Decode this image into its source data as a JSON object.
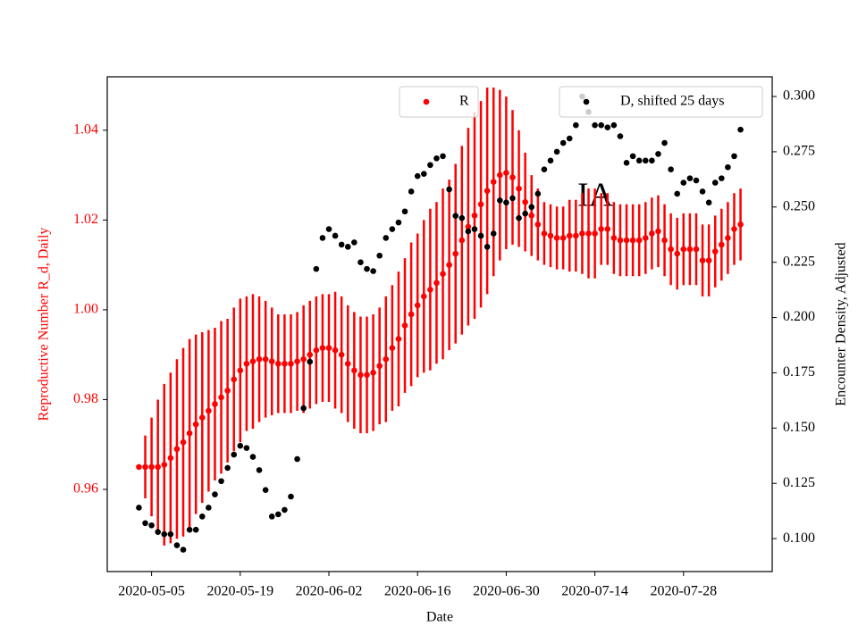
{
  "chart_data": {
    "type": "scatter",
    "xlabel": "Date",
    "ylabel": "Reproductive Number R_d, Daily",
    "y2label": "Encounter Density, Adjusted",
    "annotation": "IA",
    "x": [
      "2020-05-03",
      "2020-05-04",
      "2020-05-05",
      "2020-05-06",
      "2020-05-07",
      "2020-05-08",
      "2020-05-09",
      "2020-05-10",
      "2020-05-11",
      "2020-05-12",
      "2020-05-13",
      "2020-05-14",
      "2020-05-15",
      "2020-05-16",
      "2020-05-17",
      "2020-05-18",
      "2020-05-19",
      "2020-05-20",
      "2020-05-21",
      "2020-05-22",
      "2020-05-23",
      "2020-05-24",
      "2020-05-25",
      "2020-05-26",
      "2020-05-27",
      "2020-05-28",
      "2020-05-29",
      "2020-05-30",
      "2020-05-31",
      "2020-06-01",
      "2020-06-02",
      "2020-06-03",
      "2020-06-04",
      "2020-06-05",
      "2020-06-06",
      "2020-06-07",
      "2020-06-08",
      "2020-06-09",
      "2020-06-10",
      "2020-06-11",
      "2020-06-12",
      "2020-06-13",
      "2020-06-14",
      "2020-06-15",
      "2020-06-16",
      "2020-06-17",
      "2020-06-18",
      "2020-06-19",
      "2020-06-20",
      "2020-06-21",
      "2020-06-22",
      "2020-06-23",
      "2020-06-24",
      "2020-06-25",
      "2020-06-26",
      "2020-06-27",
      "2020-06-28",
      "2020-06-29",
      "2020-06-30",
      "2020-07-01",
      "2020-07-02",
      "2020-07-03",
      "2020-07-04",
      "2020-07-05",
      "2020-07-06",
      "2020-07-07",
      "2020-07-08",
      "2020-07-09",
      "2020-07-10",
      "2020-07-11",
      "2020-07-12",
      "2020-07-13",
      "2020-07-14",
      "2020-07-15",
      "2020-07-16",
      "2020-07-17",
      "2020-07-18",
      "2020-07-19",
      "2020-07-20",
      "2020-07-21",
      "2020-07-22",
      "2020-07-23",
      "2020-07-24",
      "2020-07-25",
      "2020-07-26",
      "2020-07-27",
      "2020-07-28",
      "2020-07-29",
      "2020-07-30",
      "2020-07-31",
      "2020-08-01",
      "2020-08-02",
      "2020-08-03",
      "2020-08-04",
      "2020-08-05",
      "2020-08-06"
    ],
    "xlim": [
      "2020-04-28",
      "2020-08-11"
    ],
    "xticks": [
      "2020-05-05",
      "2020-05-19",
      "2020-06-02",
      "2020-06-16",
      "2020-06-30",
      "2020-07-14",
      "2020-07-28"
    ],
    "ylim": [
      0.9417,
      1.0519
    ],
    "yticks": [
      0.96,
      0.98,
      {
        "value": 1,
        "label": "1.00"
      },
      1.02,
      1.04
    ],
    "y2lim": [
      0.0851,
      0.3089
    ],
    "y2ticks": [
      {
        "value": 0.1,
        "label": "0.100"
      },
      0.125,
      {
        "value": 0.15,
        "label": "0.150"
      },
      0.175,
      {
        "value": 0.2,
        "label": "0.200"
      },
      0.225,
      {
        "value": 0.25,
        "label": "0.250"
      },
      0.275,
      {
        "value": 0.3,
        "label": "0.300"
      }
    ],
    "series": [
      {
        "name": "R",
        "color": "#ff0000",
        "legend_loc": "upper center",
        "values": [
          0.965,
          0.965,
          0.965,
          0.965,
          0.9655,
          0.967,
          0.969,
          0.9705,
          0.9725,
          0.9745,
          0.976,
          0.9775,
          0.979,
          0.9805,
          0.982,
          0.9845,
          0.9865,
          0.988,
          0.9885,
          0.989,
          0.989,
          0.9885,
          0.988,
          0.988,
          0.988,
          0.9885,
          0.989,
          0.99,
          0.991,
          0.9915,
          0.9915,
          0.991,
          0.99,
          0.988,
          0.9865,
          0.9855,
          0.9855,
          0.986,
          0.9875,
          0.989,
          0.9915,
          0.9935,
          0.9965,
          0.999,
          1.001,
          1.003,
          1.0045,
          1.006,
          1.008,
          1.01,
          1.0125,
          1.0155,
          1.0185,
          1.021,
          1.0235,
          1.0265,
          1.0285,
          1.03,
          1.0305,
          1.0295,
          1.027,
          1.024,
          1.021,
          1.019,
          1.017,
          1.0165,
          1.016,
          1.016,
          1.0165,
          1.0165,
          1.017,
          1.017,
          1.017,
          1.018,
          1.018,
          1.016,
          1.0155,
          1.0155,
          1.0155,
          1.0155,
          1.016,
          1.017,
          1.0175,
          1.0155,
          1.0135,
          1.0125,
          1.0135,
          1.0135,
          1.0135,
          1.011,
          1.011,
          1.013,
          1.0145,
          1.016,
          1.018,
          1.019
        ],
        "errors": [
          0,
          0.007,
          0.011,
          0.015,
          0.018,
          0.019,
          0.02,
          0.021,
          0.021,
          0.02,
          0.019,
          0.018,
          0.017,
          0.017,
          0.016,
          0.016,
          0.016,
          0.015,
          0.015,
          0.014,
          0.013,
          0.012,
          0.011,
          0.011,
          0.011,
          0.011,
          0.012,
          0.012,
          0.012,
          0.012,
          0.012,
          0.013,
          0.013,
          0.013,
          0.013,
          0.013,
          0.013,
          0.013,
          0.013,
          0.014,
          0.014,
          0.015,
          0.015,
          0.016,
          0.016,
          0.017,
          0.018,
          0.018,
          0.019,
          0.019,
          0.02,
          0.021,
          0.022,
          0.023,
          0.023,
          0.023,
          0.021,
          0.019,
          0.017,
          0.015,
          0.013,
          0.011,
          0.009,
          0.008,
          0.007,
          0.007,
          0.007,
          0.007,
          0.008,
          0.008,
          0.009,
          0.01,
          0.01,
          0.008,
          0.008,
          0.008,
          0.008,
          0.008,
          0.008,
          0.008,
          0.008,
          0.008,
          0.008,
          0.008,
          0.008,
          0.008,
          0.008,
          0.008,
          0.008,
          0.008,
          0.008,
          0.008,
          0.008,
          0.008,
          0.008,
          0.008
        ]
      },
      {
        "name": "D, shifted 25 days",
        "color": "#000000",
        "axis": "y2",
        "legend_loc": "upper right",
        "values": [
          0.114,
          0.107,
          0.106,
          0.103,
          0.102,
          0.102,
          0.097,
          0.095,
          0.104,
          0.104,
          0.11,
          0.114,
          0.12,
          0.126,
          0.132,
          0.138,
          0.142,
          0.141,
          0.137,
          0.131,
          0.122,
          0.11,
          0.111,
          0.113,
          0.119,
          0.136,
          0.159,
          0.18,
          0.222,
          0.236,
          0.24,
          0.237,
          0.233,
          0.232,
          0.234,
          0.225,
          0.222,
          0.221,
          0.228,
          0.236,
          0.24,
          0.243,
          0.248,
          0.257,
          0.264,
          0.265,
          0.269,
          0.272,
          0.273,
          0.258,
          0.246,
          0.245,
          0.239,
          0.24,
          0.237,
          0.232,
          0.238,
          0.253,
          0.252,
          0.254,
          0.245,
          0.247,
          0.25,
          0.256,
          0.267,
          0.271,
          0.275,
          0.279,
          0.281,
          0.287,
          0.3,
          0.293,
          0.287,
          0.287,
          0.286,
          0.287,
          0.282,
          0.27,
          0.273,
          0.271,
          0.271,
          0.271,
          0.274,
          0.279,
          0.267,
          0.256,
          0.261,
          0.263,
          0.262,
          0.257,
          0.252,
          0.261,
          0.263,
          0.268,
          0.273,
          0.285
        ]
      }
    ]
  }
}
